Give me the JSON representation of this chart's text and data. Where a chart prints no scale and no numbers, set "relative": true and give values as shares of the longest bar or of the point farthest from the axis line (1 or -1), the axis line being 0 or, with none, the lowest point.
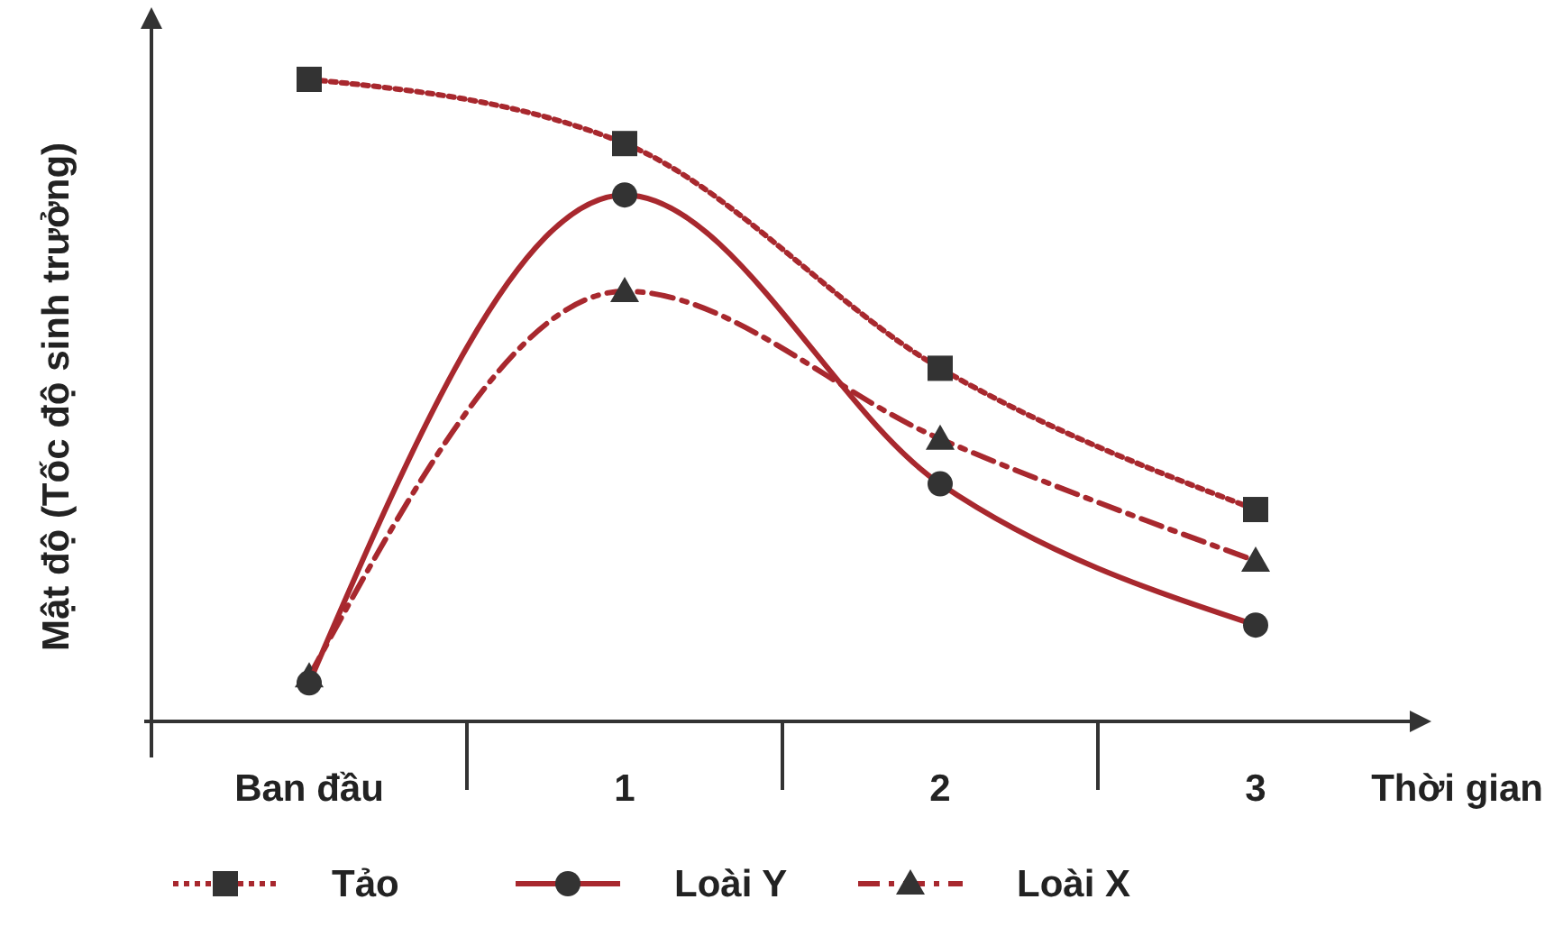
{
  "chart_data": {
    "type": "line",
    "relative": true,
    "xlabel": "Thời gian",
    "ylabel": "Mật độ (Tốc độ sinh trưởng)",
    "categories": [
      "Ban đầu",
      "1",
      "2",
      "3"
    ],
    "legend": "bottom",
    "series": [
      {
        "name": "Tảo",
        "color": "#a8282e",
        "marker": "square",
        "line_style": "dotted",
        "values": [
          1,
          0.9,
          0.55,
          0.33
        ]
      },
      {
        "name": "Loài Y",
        "color": "#a8282e",
        "marker": "circle",
        "line_style": "solid",
        "values": [
          0.06,
          0.82,
          0.37,
          0.15
        ]
      },
      {
        "name": "Loài X",
        "color": "#a8282e",
        "marker": "triangle",
        "line_style": "dashed",
        "values": [
          0.07,
          0.67,
          0.44,
          0.25
        ]
      }
    ]
  }
}
